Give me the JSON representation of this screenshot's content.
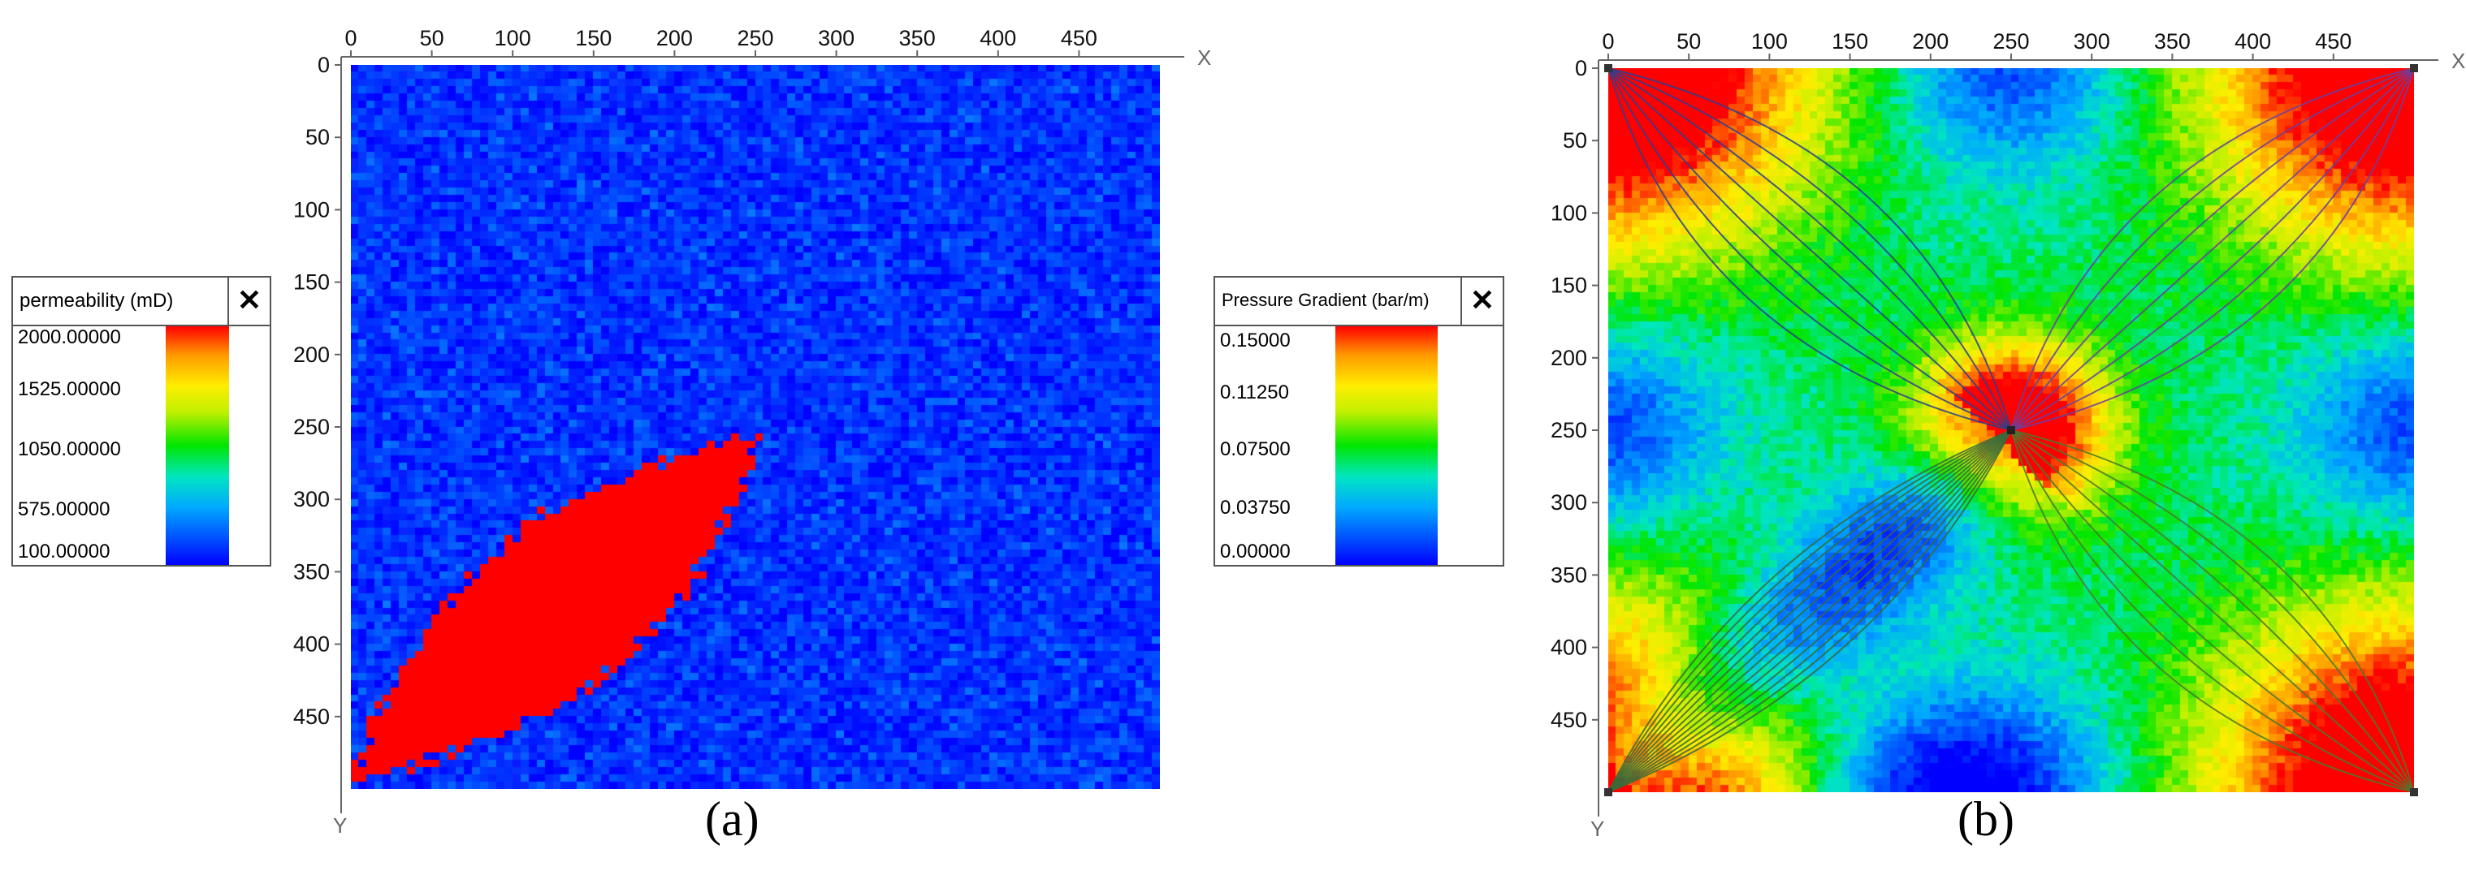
{
  "chart_data": [
    {
      "type": "heatmap",
      "caption": "(a)",
      "x_axis_letter": "X",
      "y_axis_letter": "Y",
      "xlim": [
        0,
        500
      ],
      "ylim": [
        0,
        500
      ],
      "x_ticks": [
        "0",
        "50",
        "100",
        "150",
        "200",
        "250",
        "300",
        "350",
        "400",
        "450"
      ],
      "y_ticks": [
        "0",
        "50",
        "100",
        "150",
        "200",
        "250",
        "300",
        "350",
        "400",
        "450"
      ],
      "x_tick_values": [
        0,
        50,
        100,
        150,
        200,
        250,
        300,
        350,
        400,
        450
      ],
      "y_tick_values": [
        0,
        50,
        100,
        150,
        200,
        250,
        300,
        350,
        400,
        450
      ],
      "colorscale": {
        "title": "permeability (mD)",
        "min": 100,
        "max": 2000,
        "tick_labels": [
          "2000.00000",
          "1525.00000",
          "1050.00000",
          "575.00000",
          "100.00000"
        ],
        "tick_values": [
          2000,
          1525,
          1050,
          575,
          100
        ]
      },
      "field": {
        "background_value_mD": 100,
        "high_perm_channel": {
          "value_mD": 2000,
          "from": [
            0,
            495
          ],
          "to": [
            255,
            255
          ]
        }
      }
    },
    {
      "type": "heatmap",
      "caption": "(b)",
      "x_axis_letter": "X",
      "y_axis_letter": "Y",
      "xlim": [
        0,
        500
      ],
      "ylim": [
        0,
        500
      ],
      "x_ticks": [
        "0",
        "50",
        "100",
        "150",
        "200",
        "250",
        "300",
        "350",
        "400",
        "450"
      ],
      "y_ticks": [
        "0",
        "50",
        "100",
        "150",
        "200",
        "250",
        "300",
        "350",
        "400",
        "450"
      ],
      "x_tick_values": [
        0,
        50,
        100,
        150,
        200,
        250,
        300,
        350,
        400,
        450
      ],
      "y_tick_values": [
        0,
        50,
        100,
        150,
        200,
        250,
        300,
        350,
        400,
        450
      ],
      "colorscale": {
        "title": "Pressure Gradient (bar/m)",
        "min": 0,
        "max": 0.15,
        "tick_labels": [
          "0.15000",
          "0.11250",
          "0.07500",
          "0.03750",
          "0.00000"
        ],
        "tick_values": [
          0.15,
          0.1125,
          0.075,
          0.0375,
          0
        ]
      },
      "wells": {
        "producer": [
          250,
          250
        ],
        "injectors": [
          [
            0,
            0
          ],
          [
            500,
            0
          ],
          [
            0,
            500
          ],
          [
            500,
            500
          ]
        ]
      },
      "streamlines": true
    }
  ]
}
